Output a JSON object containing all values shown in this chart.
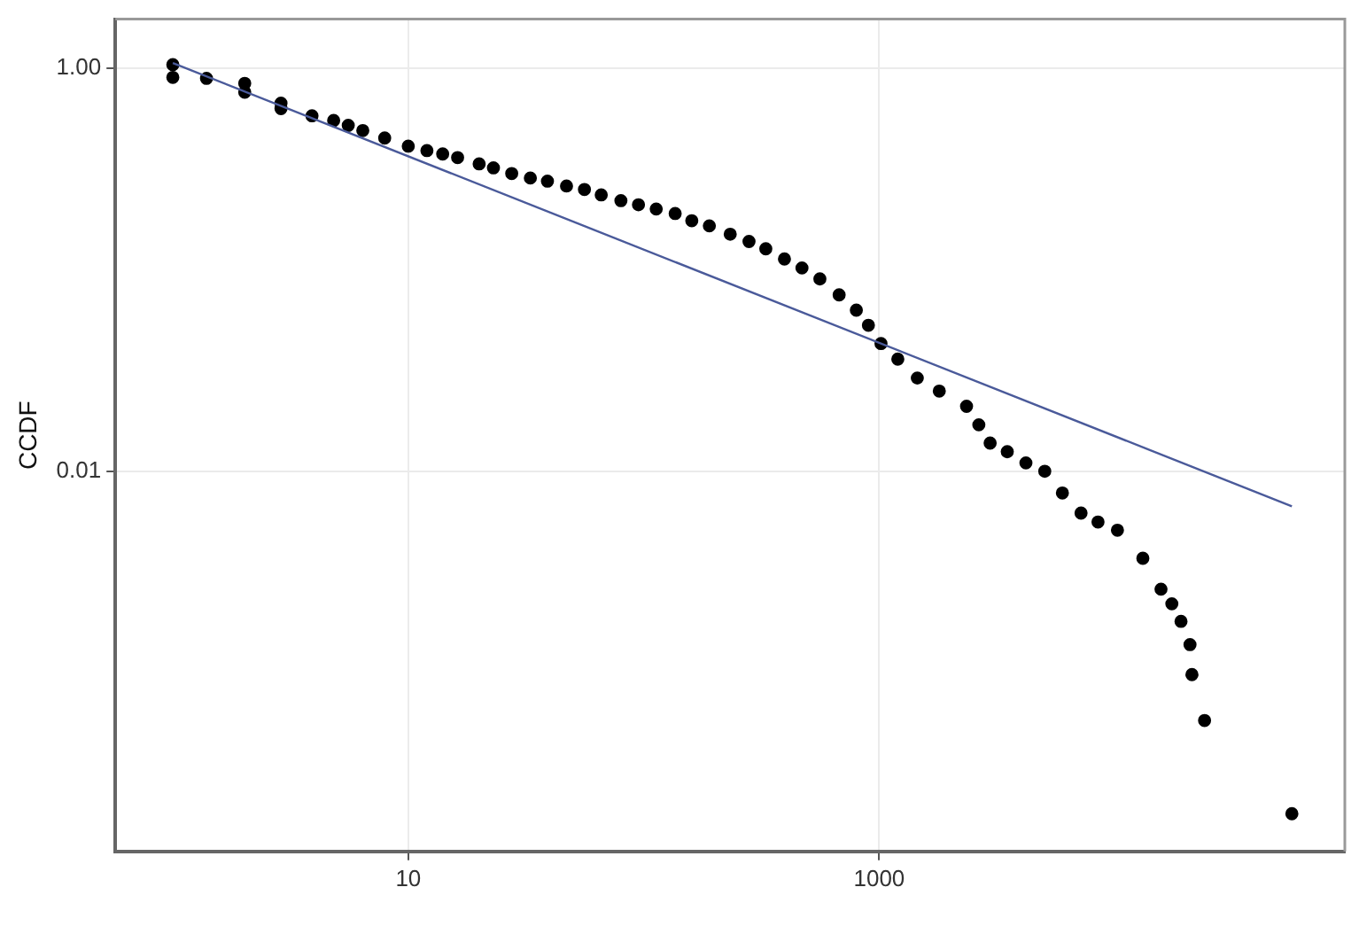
{
  "chart_data": {
    "type": "scatter",
    "ylabel": "CCDF",
    "log": "xy",
    "grid": true,
    "legend": false,
    "marker": "circle",
    "xlim": [
      0.57,
      95000
    ],
    "ylim": [
      0.00013,
      1.75
    ],
    "xticks": [
      10,
      1000
    ],
    "yticks": [
      {
        "value": 1,
        "label": "1.00"
      },
      0.01
    ],
    "series": [
      {
        "color": "#000000",
        "x": [
          1,
          1,
          1.39,
          2.02,
          2.02,
          2.88,
          2.88,
          3.9,
          4.82,
          5.56,
          6.41,
          7.94,
          10,
          12,
          14,
          16.2,
          20,
          23,
          27.5,
          33,
          39,
          47,
          56,
          66,
          80,
          95,
          113,
          136,
          160,
          190,
          233,
          280,
          330,
          396,
          470,
          560,
          676,
          800,
          900,
          1018,
          1200,
          1452,
          1800,
          2350,
          2650,
          2960,
          3500,
          4200,
          5050,
          6000,
          7200,
          8500,
          10280,
          13180,
          15740,
          17500,
          19140,
          20900,
          21300,
          24100,
          56600
        ],
        "values": [
          1.04,
          0.9,
          0.89,
          0.84,
          0.76,
          0.67,
          0.63,
          0.58,
          0.55,
          0.52,
          0.49,
          0.45,
          0.41,
          0.39,
          0.375,
          0.36,
          0.335,
          0.32,
          0.3,
          0.285,
          0.275,
          0.26,
          0.25,
          0.235,
          0.22,
          0.21,
          0.2,
          0.19,
          0.175,
          0.165,
          0.15,
          0.138,
          0.127,
          0.113,
          0.102,
          0.09,
          0.075,
          0.063,
          0.053,
          0.043,
          0.036,
          0.029,
          0.025,
          0.021,
          0.017,
          0.0138,
          0.0125,
          0.011,
          0.01,
          0.0078,
          0.0062,
          0.0056,
          0.0051,
          0.0037,
          0.0026,
          0.0022,
          0.0018,
          0.00138,
          0.00098,
          0.00058,
          0.0002
        ]
      },
      {
        "type": "line",
        "color": "#4a5a9a",
        "line_style": "solid",
        "marker": "none",
        "x": [
          1,
          56600
        ],
        "values": [
          1.06,
          0.0067
        ]
      }
    ]
  }
}
